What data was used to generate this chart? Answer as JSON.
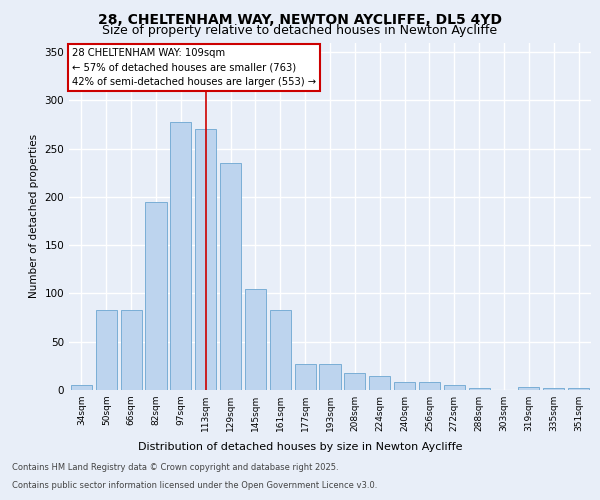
{
  "title_line1": "28, CHELTENHAM WAY, NEWTON AYCLIFFE, DL5 4YD",
  "title_line2": "Size of property relative to detached houses in Newton Aycliffe",
  "xlabel": "Distribution of detached houses by size in Newton Aycliffe",
  "ylabel": "Number of detached properties",
  "categories": [
    "34sqm",
    "50sqm",
    "66sqm",
    "82sqm",
    "97sqm",
    "113sqm",
    "129sqm",
    "145sqm",
    "161sqm",
    "177sqm",
    "193sqm",
    "208sqm",
    "224sqm",
    "240sqm",
    "256sqm",
    "272sqm",
    "288sqm",
    "303sqm",
    "319sqm",
    "335sqm",
    "351sqm"
  ],
  "values": [
    5,
    83,
    83,
    195,
    278,
    270,
    235,
    105,
    83,
    27,
    27,
    18,
    15,
    8,
    8,
    5,
    2,
    0,
    3,
    2,
    2
  ],
  "bar_color": "#bdd4ee",
  "bar_edge_color": "#7aaed6",
  "vline_x": 5.0,
  "vline_color": "#cc0000",
  "annotation_text": "28 CHELTENHAM WAY: 109sqm\n← 57% of detached houses are smaller (763)\n42% of semi-detached houses are larger (553) →",
  "annotation_box_color": "#cc0000",
  "ylim": [
    0,
    360
  ],
  "yticks": [
    0,
    50,
    100,
    150,
    200,
    250,
    300,
    350
  ],
  "footer_line1": "Contains HM Land Registry data © Crown copyright and database right 2025.",
  "footer_line2": "Contains public sector information licensed under the Open Government Licence v3.0.",
  "background_color": "#e8eef8",
  "grid_color": "#ffffff",
  "title_fontsize": 10,
  "subtitle_fontsize": 9
}
